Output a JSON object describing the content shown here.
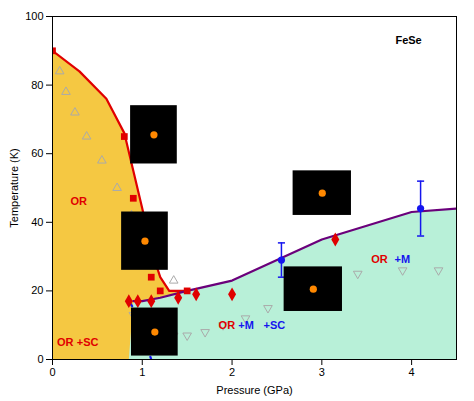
{
  "chart_data": {
    "type": "line",
    "xlabel": "Pressure (GPa)",
    "ylabel": "Temperature (K)",
    "xlim": [
      0,
      4.5
    ],
    "ylim": [
      0,
      100
    ],
    "xticks": [
      0,
      1,
      2,
      3,
      4
    ],
    "yticks": [
      0,
      20,
      40,
      60,
      80,
      100
    ],
    "grid": false,
    "areas": [
      {
        "color": "#f5c842",
        "x": [
          0,
          0,
          0.3,
          0.6,
          0.8,
          0.9,
          1.0,
          1.1,
          1.2,
          1.3,
          1.5,
          1.0,
          1.2,
          1.5,
          2.0,
          2.5,
          3.0,
          3.5,
          4.0,
          4.5,
          4.5,
          0
        ],
        "y": [
          0,
          90,
          84,
          76,
          66,
          55,
          44,
          32,
          24,
          20,
          20,
          17,
          18,
          20,
          23,
          29,
          35,
          39,
          43,
          44,
          0,
          0
        ]
      },
      {
        "color": "#b8f0d8",
        "x": [
          0.9,
          1.0,
          1.2,
          1.5,
          2.0,
          2.5,
          3.0,
          3.5,
          4.0,
          4.5,
          4.5,
          0.85
        ],
        "y": [
          17,
          17,
          18,
          20,
          23,
          29,
          35,
          39,
          43,
          44,
          0,
          0
        ]
      },
      {
        "color": "#b8f0d8",
        "x": [
          0,
          0.85,
          1.1,
          1.05,
          1.0,
          0.95,
          0.9,
          0.85,
          0
        ],
        "y": [
          0,
          17,
          0,
          4,
          8,
          12,
          15,
          17,
          0
        ]
      }
    ],
    "series": [
      {
        "type": "scatter",
        "marker": "triangle-up-open",
        "color": "#aaaaaa",
        "x": [
          0.08,
          0.15,
          0.25,
          0.38,
          0.55,
          0.72,
          0.88,
          1.05,
          1.2,
          1.35
        ],
        "values": [
          84,
          78,
          72,
          65,
          58,
          50,
          42,
          35,
          28,
          23
        ]
      },
      {
        "type": "scatter",
        "marker": "triangle-down-open",
        "color": "#aaaaaa",
        "x": [
          0.9,
          1.05,
          1.2,
          1.35,
          1.5,
          1.7,
          1.9,
          2.15,
          2.4,
          2.7,
          3.0,
          3.4,
          3.9,
          4.3
        ],
        "values": [
          13,
          10,
          8,
          7,
          7,
          8,
          10,
          12,
          15,
          18,
          22,
          25,
          26,
          26
        ]
      },
      {
        "type": "line",
        "line_style": "solid",
        "color": "#e00000",
        "x": [
          0,
          0.3,
          0.6,
          0.8,
          0.9,
          1.0,
          1.1,
          1.2,
          1.3,
          1.5
        ],
        "values": [
          90,
          84,
          76,
          66,
          55,
          44,
          32,
          24,
          20,
          20
        ]
      },
      {
        "type": "line",
        "line_style": "solid",
        "color": "#6b007b",
        "x": [
          0.9,
          1.0,
          1.2,
          1.5,
          2.0,
          2.5,
          3.0,
          3.5,
          4.0,
          4.5
        ],
        "values": [
          17,
          17,
          18,
          20,
          23,
          29,
          35,
          39,
          43,
          44
        ]
      },
      {
        "type": "line",
        "line_style": "dashed",
        "color": "#1515ee",
        "x": [
          0.85,
          0.9,
          0.95,
          1.0,
          1.05,
          1.1
        ],
        "values": [
          17,
          15,
          12,
          8,
          4,
          0
        ]
      },
      {
        "type": "scatter",
        "marker": "square",
        "color": "#e00000",
        "x": [
          0.0,
          0.8,
          0.9,
          1.0,
          1.1,
          1.2,
          1.5
        ],
        "values": [
          90,
          65,
          47,
          32,
          24,
          20,
          20
        ]
      },
      {
        "type": "scatter",
        "marker": "diamond",
        "color": "#e00000",
        "x": [
          0.85,
          0.95,
          1.1,
          1.4,
          1.6,
          2.0,
          3.15
        ],
        "values": [
          17,
          17,
          17,
          18,
          19,
          19,
          35
        ]
      },
      {
        "type": "scatter",
        "marker": "circle",
        "color": "#1515ee",
        "x": [
          2.55,
          4.1
        ],
        "values": [
          29,
          44
        ],
        "error": [
          5,
          8
        ]
      },
      {
        "type": "rect",
        "color": "#000000",
        "x1": [
          0.87,
          0.77,
          0.88,
          2.68,
          2.58
        ],
        "x2": [
          1.39,
          1.29,
          1.4,
          3.33,
          3.23
        ],
        "y1": [
          57,
          26,
          1,
          42,
          14
        ],
        "y2": [
          74,
          43,
          15,
          55,
          27
        ]
      },
      {
        "type": "scatter",
        "marker": "circle",
        "color": "#ff8800",
        "x": [
          1.13,
          1.03,
          1.14,
          3.005,
          2.905
        ],
        "values": [
          65.5,
          34.5,
          8,
          48.5,
          20.5
        ]
      }
    ],
    "annotations": [
      {
        "text": "OR",
        "x": 0.2,
        "y": 45,
        "color": "#e00000"
      },
      {
        "text": "OR",
        "x": 0.05,
        "y": 4,
        "color": "#e00000"
      },
      {
        "text": "+SC",
        "x": 0.27,
        "y": 4,
        "color": "#e00000"
      },
      {
        "text": "OR",
        "x": 1.85,
        "y": 9,
        "color": "#e00000"
      },
      {
        "text": "+M",
        "x": 2.07,
        "y": 9,
        "color": "#1515ee"
      },
      {
        "text": "+SC",
        "x": 2.35,
        "y": 9,
        "color": "#1515ee"
      },
      {
        "text": "OR",
        "x": 3.55,
        "y": 28,
        "color": "#e00000"
      },
      {
        "text": "+M",
        "x": 3.81,
        "y": 28,
        "color": "#1515ee"
      },
      {
        "text": "FeSe",
        "x": 3.82,
        "y": 92,
        "color": "#000000"
      }
    ]
  }
}
